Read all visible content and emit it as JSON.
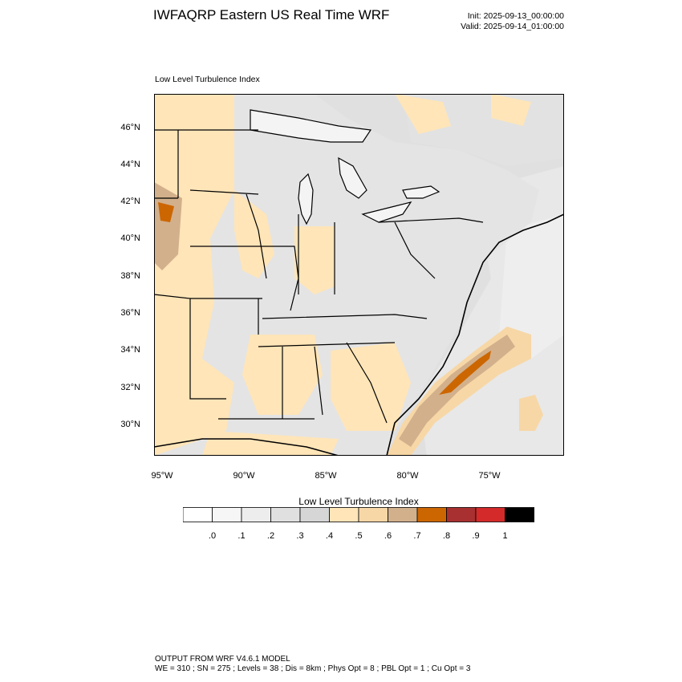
{
  "header": {
    "title": "IWFAQRP Eastern US Real Time WRF",
    "init": "Init: 2025-09-13_00:00:00",
    "valid": "Valid: 2025-09-14_01:00:00"
  },
  "map": {
    "variable_label": "Low Level Turbulence Index",
    "lat_labels": [
      "46°N",
      "44°N",
      "42°N",
      "40°N",
      "38°N",
      "36°N",
      "34°N",
      "32°N",
      "30°N"
    ],
    "lon_labels": [
      "95°W",
      "90°W",
      "85°W",
      "80°W",
      "75°W"
    ],
    "background_color": "#e0e0e0",
    "land_color": "#e6e6e6",
    "lake_color": "#f4f4f4",
    "border_color": "#000000"
  },
  "colorbar": {
    "title": "Low Level Turbulence Index",
    "colors": [
      "#ffffff",
      "#f6f6f6",
      "#ededed",
      "#e0e0e0",
      "#d6d6d6",
      "#ffe5b8",
      "#f7d7a6",
      "#d2b08c",
      "#cc6600",
      "#a83030",
      "#d42a2a",
      "#000000"
    ],
    "tick_labels": [
      ".0",
      ".1",
      ".2",
      ".3",
      ".4",
      ".5",
      ".6",
      ".7",
      ".8",
      ".9",
      "1"
    ]
  },
  "footer": {
    "line1": "OUTPUT FROM WRF V4.6.1 MODEL",
    "line2": "WE = 310 ; SN = 275 ; Levels = 38 ; Dis = 8km ; Phys Opt = 8 ; PBL Opt = 1 ; Cu Opt = 3"
  }
}
